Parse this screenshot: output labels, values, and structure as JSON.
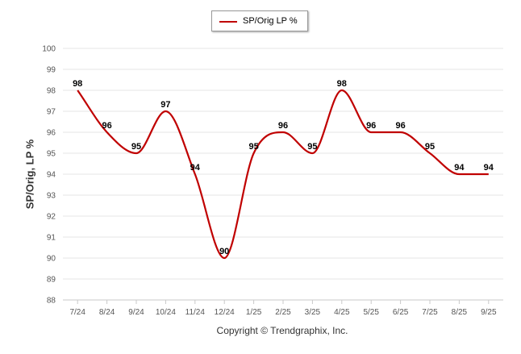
{
  "legend": {
    "label": "SP/Orig LP %"
  },
  "footer": {
    "copyright": "Copyright © Trendgraphix, Inc."
  },
  "chart_data": {
    "type": "line",
    "title": "",
    "xlabel": "",
    "ylabel": "SP/Orig, LP %",
    "categories": [
      "7/24",
      "8/24",
      "9/24",
      "10/24",
      "11/24",
      "12/24",
      "1/25",
      "2/25",
      "3/25",
      "4/25",
      "5/25",
      "6/25",
      "7/25",
      "8/25",
      "9/25"
    ],
    "series": [
      {
        "name": "SP/Orig LP %",
        "color": "#c00000",
        "values": [
          98,
          96,
          95,
          97,
          94,
          90,
          95,
          96,
          95,
          98,
          96,
          96,
          95,
          94,
          94
        ]
      }
    ],
    "ylim": [
      88,
      100
    ],
    "yticks": [
      88,
      89,
      90,
      91,
      92,
      93,
      94,
      95,
      96,
      97,
      98,
      99,
      100
    ],
    "grid": true,
    "legend_position": "top-center",
    "data_labels": true
  }
}
